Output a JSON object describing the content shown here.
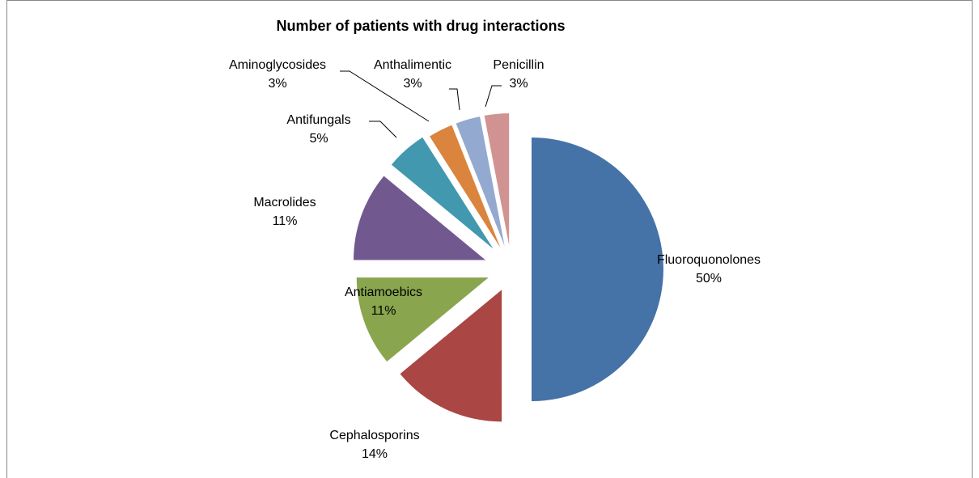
{
  "chart_data": {
    "type": "pie",
    "title": "Number of patients with drug interactions",
    "categories": [
      "Fluoroquonolones",
      "Cephalosporins",
      "Antiamoebics",
      "Macrolides",
      "Antifungals",
      "Aminoglycosides",
      "Anthalimentic",
      "Penicillin"
    ],
    "values": [
      50,
      14,
      11,
      11,
      5,
      3,
      3,
      3
    ],
    "value_labels": [
      "50%",
      "14%",
      "11%",
      "11%",
      "5%",
      "3%",
      "3%",
      "3%"
    ],
    "colors": [
      "#4572a7",
      "#aa4643",
      "#89a54e",
      "#71588f",
      "#4198af",
      "#db843d",
      "#93a9cf",
      "#d19392"
    ]
  }
}
